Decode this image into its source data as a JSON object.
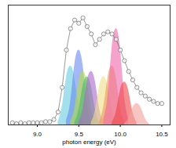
{
  "chart_data": {
    "type": "scatter",
    "x_label": "photon energy (eV)",
    "x": [
      8.7,
      8.75,
      8.8,
      8.85,
      8.9,
      8.95,
      9.0,
      9.05,
      9.1,
      9.15,
      9.2,
      9.25,
      9.3,
      9.35,
      9.4,
      9.45,
      9.5,
      9.55,
      9.6,
      9.65,
      9.7,
      9.75,
      9.8,
      9.85,
      9.9,
      9.95,
      10.0,
      10.05,
      10.1,
      10.15,
      10.2,
      10.25,
      10.3,
      10.35,
      10.4,
      10.45,
      10.5
    ],
    "values": [
      0.02,
      0.01,
      0.02,
      0.01,
      0.02,
      0.02,
      0.02,
      0.02,
      0.03,
      0.03,
      0.05,
      0.12,
      0.35,
      0.7,
      0.9,
      0.98,
      0.95,
      1.0,
      0.92,
      0.85,
      0.75,
      0.8,
      0.85,
      0.87,
      0.85,
      0.8,
      0.7,
      0.6,
      0.5,
      0.42,
      0.35,
      0.3,
      0.27,
      0.24,
      0.22,
      0.2,
      0.2
    ],
    "marker": "open_circle",
    "series": [
      {
        "type": "area",
        "color": "#66ccdd",
        "x": [
          9.25,
          9.3,
          9.35,
          9.4,
          9.45,
          9.5,
          9.55
        ],
        "values": [
          0.03,
          0.17,
          0.44,
          0.55,
          0.44,
          0.17,
          0.03
        ]
      },
      {
        "type": "area",
        "color": "#6688ee",
        "x": [
          9.35,
          9.4,
          9.45,
          9.5,
          9.55,
          9.6,
          9.65
        ],
        "values": [
          0.04,
          0.21,
          0.56,
          0.7,
          0.56,
          0.21,
          0.04
        ]
      },
      {
        "type": "area",
        "color": "#bbdd44",
        "x": [
          9.4,
          9.45,
          9.5,
          9.55,
          9.6,
          9.65,
          9.7
        ],
        "values": [
          0.03,
          0.15,
          0.4,
          0.5,
          0.4,
          0.15,
          0.03
        ]
      },
      {
        "type": "area",
        "color": "#44bb66",
        "x": [
          9.45,
          9.5,
          9.55,
          9.6,
          9.65,
          9.7,
          9.75
        ],
        "values": [
          0.02,
          0.14,
          0.36,
          0.45,
          0.36,
          0.14,
          0.02
        ]
      },
      {
        "type": "area",
        "color": "#aa66cc",
        "x": [
          9.5,
          9.55,
          9.6,
          9.65,
          9.7,
          9.75,
          9.8
        ],
        "values": [
          0.03,
          0.15,
          0.4,
          0.5,
          0.4,
          0.15,
          0.03
        ]
      },
      {
        "type": "area",
        "color": "#eedd88",
        "x": [
          9.65,
          9.7,
          9.75,
          9.8,
          9.85,
          9.9,
          9.95
        ],
        "values": [
          0.02,
          0.14,
          0.36,
          0.45,
          0.36,
          0.14,
          0.02
        ]
      },
      {
        "type": "area",
        "color": "#ee9955",
        "x": [
          9.75,
          9.8,
          9.85,
          9.9,
          9.95,
          10.0,
          10.05
        ],
        "values": [
          0.03,
          0.17,
          0.44,
          0.55,
          0.44,
          0.17,
          0.03
        ]
      },
      {
        "type": "area",
        "color": "#ee66aa",
        "x": [
          9.8,
          9.85,
          9.9,
          9.95,
          10.0,
          10.05,
          10.1
        ],
        "values": [
          0.05,
          0.27,
          0.72,
          0.9,
          0.72,
          0.27,
          0.05
        ]
      },
      {
        "type": "area",
        "color": "#ee4444",
        "x": [
          9.9,
          9.95,
          10.0,
          10.05,
          10.1,
          10.15,
          10.2
        ],
        "values": [
          0.02,
          0.12,
          0.32,
          0.4,
          0.32,
          0.12,
          0.02
        ]
      },
      {
        "type": "area",
        "color": "#f4a09a",
        "x": [
          10.05,
          10.1,
          10.15,
          10.2,
          10.25,
          10.3,
          10.35
        ],
        "values": [
          0.01,
          0.06,
          0.16,
          0.2,
          0.16,
          0.06,
          0.01
        ]
      }
    ],
    "xlim": [
      8.65,
      10.6
    ],
    "xticks": [
      {
        "value": 9,
        "label": "9.0"
      },
      9.5,
      {
        "value": 10,
        "label": "10.0"
      },
      10.5
    ],
    "ylim": [
      0,
      1.12
    ],
    "tick_labels": "x",
    "grid": false
  }
}
